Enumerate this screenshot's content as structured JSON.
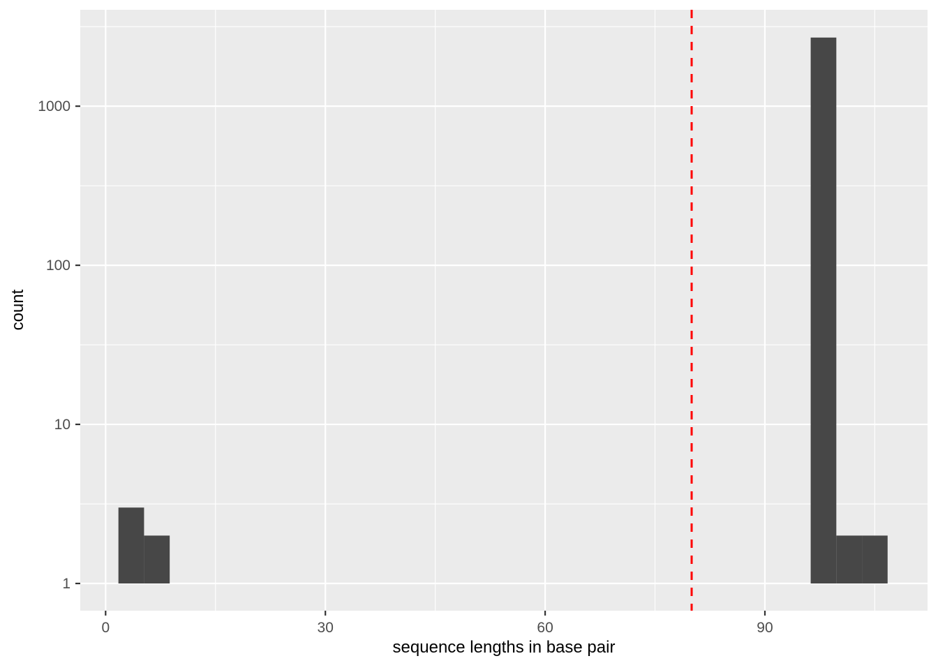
{
  "chart_data": {
    "type": "bar",
    "subtype": "histogram",
    "title": "",
    "xlabel": "sequence lengths in base pair",
    "ylabel": "count",
    "y_scale": "log10",
    "x_domain": [
      -3.46,
      112.2
    ],
    "y_domain_log10": [
      -0.171,
      3.606
    ],
    "x_major_ticks": [
      0,
      30,
      60,
      90
    ],
    "x_tick_labels": [
      "0",
      "30",
      "60",
      "90"
    ],
    "x_minor_ticks": [
      15,
      45,
      75,
      105
    ],
    "y_major_ticks": [
      1,
      10,
      100,
      1000
    ],
    "y_tick_labels": [
      "1",
      "10",
      "100",
      "1000"
    ],
    "y_minor_ticks": [
      3.162,
      31.62,
      316.2,
      3162
    ],
    "bar_base_count": 1,
    "bins": [
      {
        "x_start": 1.75,
        "x_end": 5.25,
        "count": 3
      },
      {
        "x_start": 5.25,
        "x_end": 8.75,
        "count": 2
      },
      {
        "x_start": 96.25,
        "x_end": 99.75,
        "count": 2700
      },
      {
        "x_start": 99.75,
        "x_end": 103.25,
        "count": 2
      },
      {
        "x_start": 103.25,
        "x_end": 106.75,
        "count": 2
      }
    ],
    "vline": {
      "x": 80,
      "line_style": "dashed",
      "color": "#ff0000"
    },
    "grid": true,
    "legend_position": "none",
    "colors": {
      "panel_bg": "#ebebeb",
      "grid_major": "#ffffff",
      "grid_minor": "#ffffff",
      "bar_fill": "#474747",
      "tick_mark": "#333333",
      "tick_label": "#4d4d4d",
      "axis_title": "#000000"
    }
  }
}
